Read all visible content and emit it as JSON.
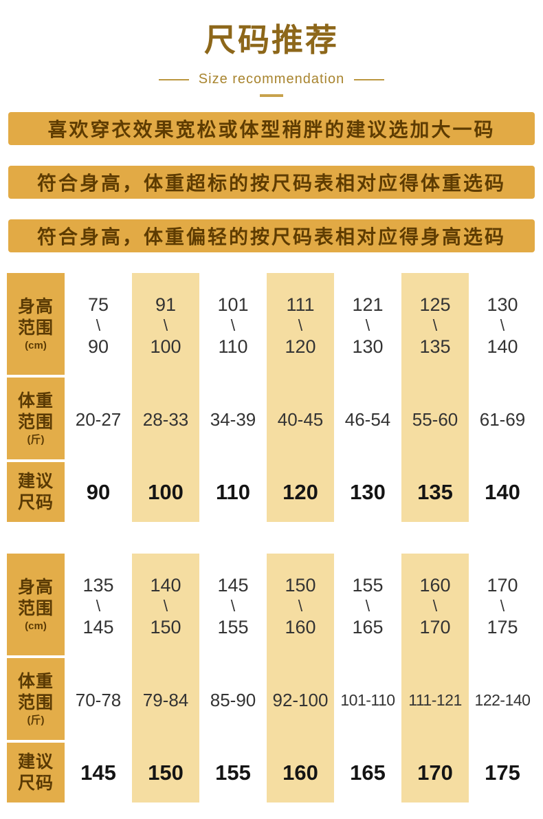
{
  "page": {
    "title": "尺码推荐",
    "subtitle": "Size recommendation"
  },
  "ui": {
    "height_separator": "\\"
  },
  "colors": {
    "title_bronze": "#8d671a",
    "subtitle_gold": "#a8842e",
    "banner_background": "#e2aa45",
    "banner_text": "#5e3c02",
    "header_cell_gold": "#e3ad49",
    "shaded_column": "#f5dda1",
    "body_text": "#333333"
  },
  "notices": [
    "喜欢穿衣效果宽松或体型稍胖的建议选加大一码",
    "符合身高，体重超标的按尺码表相对应得体重选码",
    "符合身高，体重偏轻的按尺码表相对应得身高选码"
  ],
  "row_headers": {
    "height": {
      "line1": "身高",
      "line2": "范围",
      "unit": "(cm)"
    },
    "weight": {
      "line1": "体重",
      "line2": "范围",
      "unit": "(斤)"
    },
    "size": {
      "line1": "建议",
      "line2": "尺码"
    }
  },
  "tables": [
    {
      "height_from": [
        "75",
        "91",
        "101",
        "111",
        "121",
        "125",
        "130"
      ],
      "height_to": [
        "90",
        "100",
        "110",
        "120",
        "130",
        "135",
        "140"
      ],
      "weight": [
        "20-27",
        "28-33",
        "34-39",
        "40-45",
        "46-54",
        "55-60",
        "61-69"
      ],
      "size": [
        "90",
        "100",
        "110",
        "120",
        "130",
        "135",
        "140"
      ]
    },
    {
      "height_from": [
        "135",
        "140",
        "145",
        "150",
        "155",
        "160",
        "170"
      ],
      "height_to": [
        "145",
        "150",
        "155",
        "160",
        "165",
        "170",
        "175"
      ],
      "weight": [
        "70-78",
        "79-84",
        "85-90",
        "92-100",
        "101-110",
        "111-121",
        "122-140"
      ],
      "size": [
        "145",
        "150",
        "155",
        "160",
        "165",
        "170",
        "175"
      ]
    }
  ]
}
